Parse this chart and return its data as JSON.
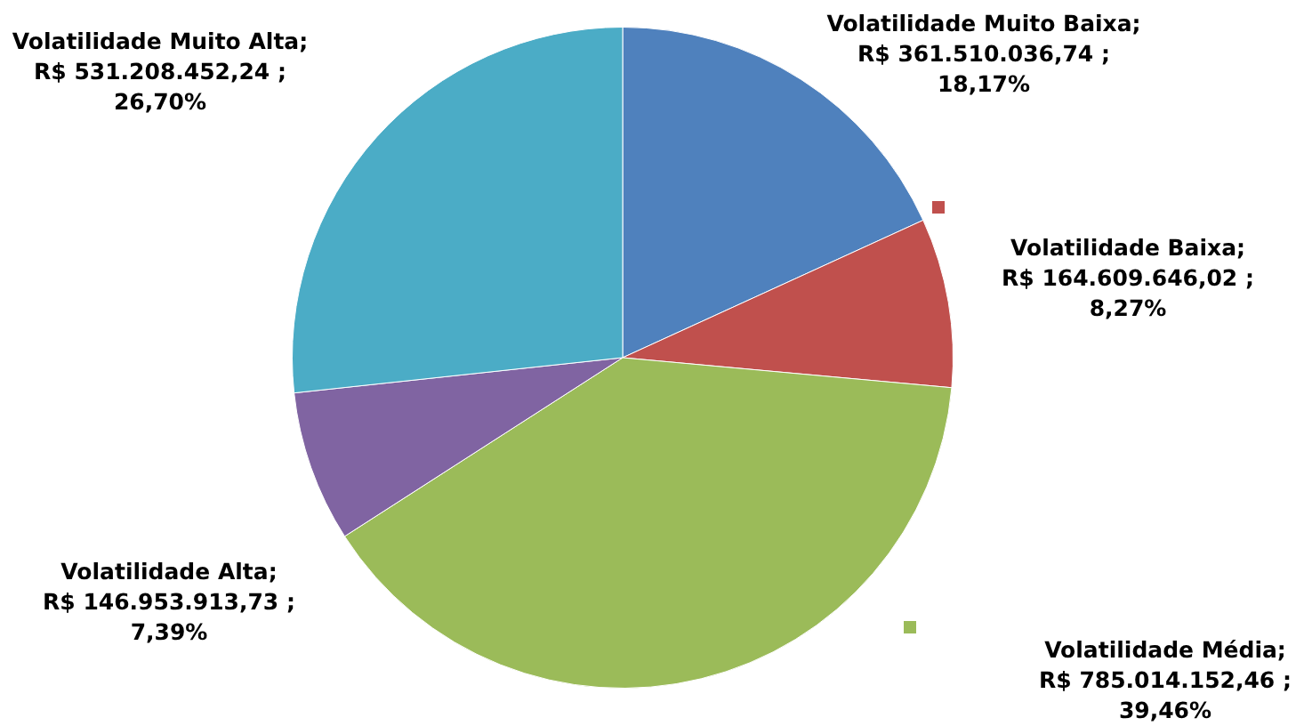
{
  "chart_data": {
    "type": "pie",
    "categories": [
      "Volatilidade Muito Baixa",
      "Volatilidade Baixa",
      "Volatilidade Média",
      "Volatilidade Alta",
      "Volatilidade Muito Alta"
    ],
    "values": [
      361510036.74,
      164609646.02,
      785014152.46,
      146953913.73,
      531208452.24
    ],
    "colors": [
      "#4f81bd",
      "#c0504d",
      "#9bbb59",
      "#8064a2",
      "#4bacc6"
    ],
    "value_labels": [
      "; R$ 361.510.036,74 ; 18,17%",
      "; R$ 164.609.646,02 ; 8,27%",
      "; R$ 785.014.152,46 ; 39,46%",
      "; R$ 146.953.913,73 ; 7,39%",
      "; R$ 531.208.452,24 ; 26,70%"
    ],
    "legend": false
  }
}
